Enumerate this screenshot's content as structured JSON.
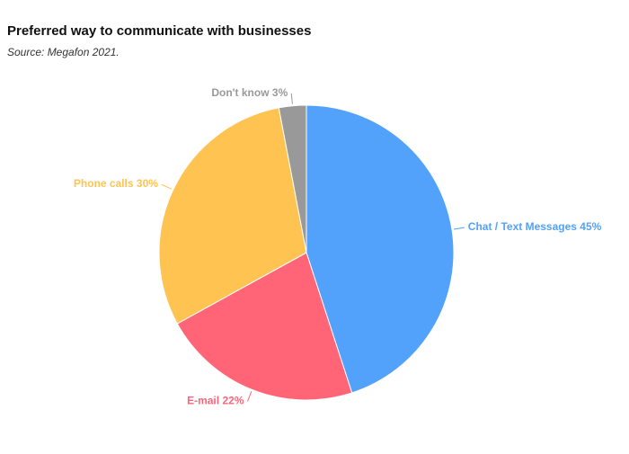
{
  "chart_data": {
    "type": "pie",
    "title": "Preferred way to communicate with businesses",
    "subtitle": "Source: Megafon 2021.",
    "categories": [
      "Chat / Text Messages",
      "E-mail",
      "Phone calls",
      "Don't know"
    ],
    "values": [
      45,
      22,
      30,
      3
    ],
    "value_labels": [
      "45%",
      "22%",
      "30%",
      "3%"
    ],
    "colors": [
      "#52a2fb",
      "#ff6577",
      "#ffc352",
      "#999999"
    ]
  }
}
